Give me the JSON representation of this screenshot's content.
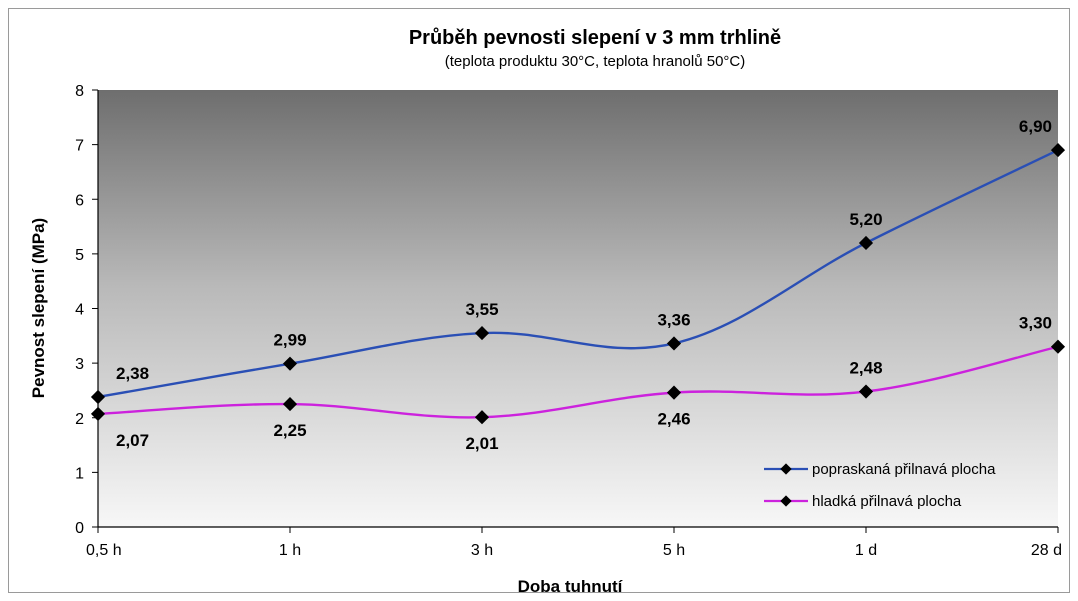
{
  "chart_data": {
    "type": "line",
    "title": "Průběh pevnosti slepení v 3 mm trhlině",
    "subtitle": "(teplota produktu 30°C, teplota hranolů 50°C)",
    "xlabel": "Doba tuhnutí",
    "ylabel": "Pevnost slepení (MPa)",
    "categories": [
      "0,5 h",
      "1 h",
      "3 h",
      "5 h",
      "1 d",
      "28 d"
    ],
    "ylim": [
      0,
      8
    ],
    "yticks": [
      "0",
      "1",
      "2",
      "3",
      "4",
      "5",
      "6",
      "7",
      "8"
    ],
    "grid": false,
    "legend_position": "bottom-right",
    "series": [
      {
        "name": "popraskaná přilnavá plocha",
        "color": "#2a4fb5",
        "values": [
          2.38,
          2.99,
          3.55,
          3.36,
          5.2,
          6.9
        ],
        "labels": [
          "2,38",
          "2,99",
          "3,55",
          "3,36",
          "5,20",
          "6,90"
        ]
      },
      {
        "name": "hladká přilnavá plocha",
        "color": "#cc22dd",
        "values": [
          2.07,
          2.25,
          2.01,
          2.46,
          2.48,
          3.3
        ],
        "labels": [
          "2,07",
          "2,25",
          "2,01",
          "2,46",
          "2,48",
          "3,30"
        ]
      }
    ]
  }
}
